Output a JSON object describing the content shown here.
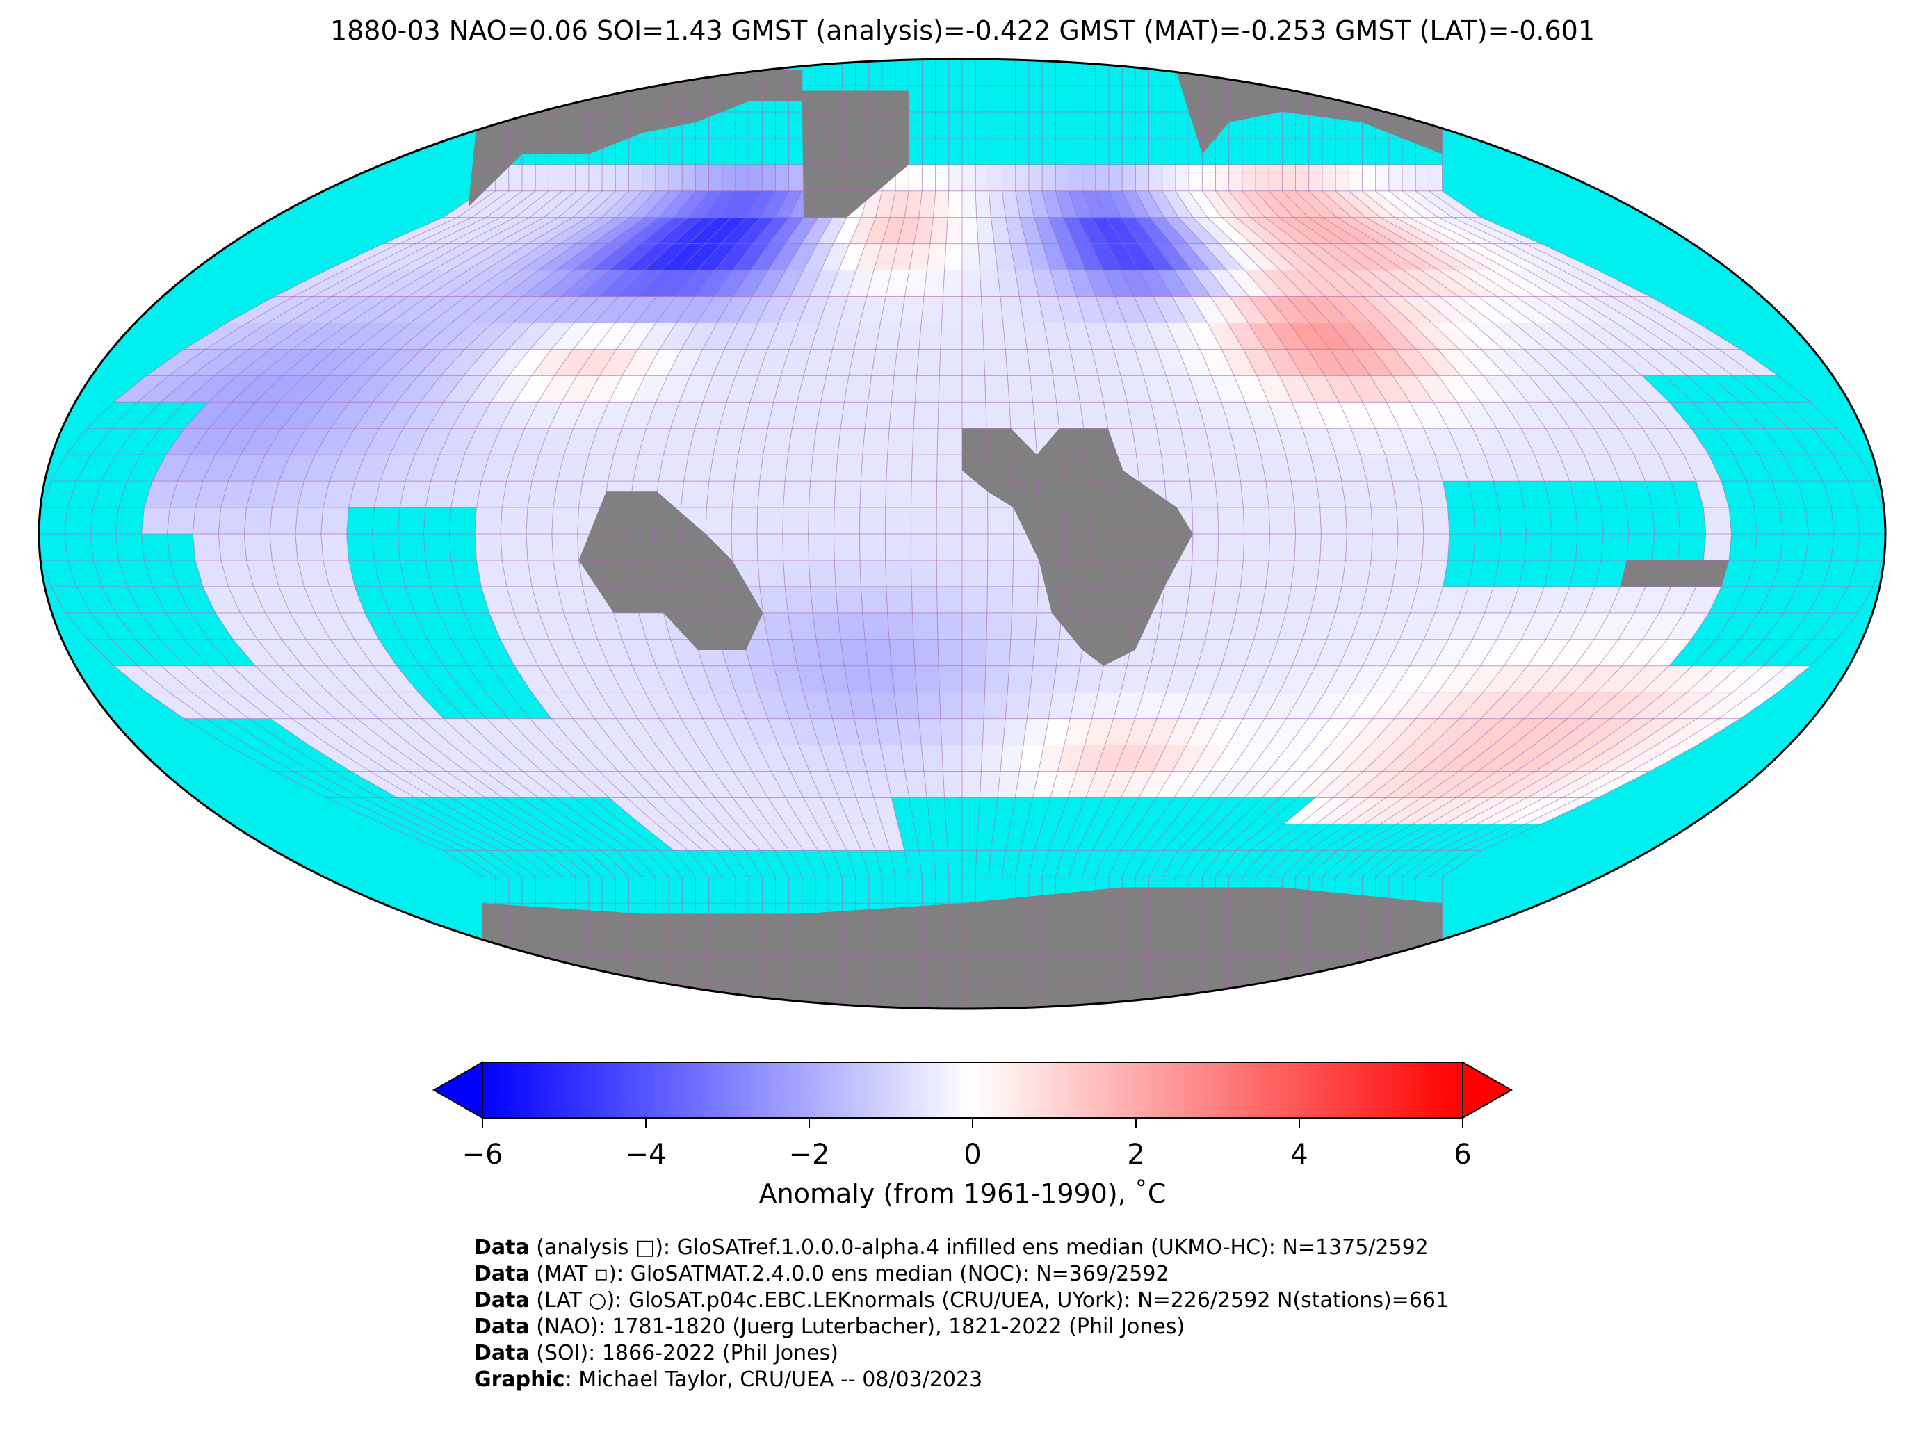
{
  "title": "1880-03 NAO=0.06 SOI=1.43 GMST (analysis)=-0.422 GMST (MAT)=-0.253 GMST (LAT)=-0.601",
  "colorbar": {
    "label": "Anomaly (from 1961-1990), ˚C",
    "ticks": [
      "−6",
      "−4",
      "−2",
      "0",
      "2",
      "4",
      "6"
    ],
    "range": [
      -6,
      6
    ],
    "colors": {
      "low": "#0000ff",
      "mid": "#ffffff",
      "high": "#ff0000"
    }
  },
  "map": {
    "projection": "Robinson",
    "ocean_missing_color": "#00f0f0",
    "land_missing_color": "#808080",
    "gridline_color": "#b060b0"
  },
  "credits": [
    {
      "bold": "Data",
      "text": " (analysis □): GloSATref.1.0.0.0-alpha.4 infilled ens median (UKMO-HC): N=1375/2592"
    },
    {
      "bold": "Data",
      "text": " (MAT ▫): GloSATMAT.2.4.0.0 ens median (NOC): N=369/2592"
    },
    {
      "bold": "Data",
      "text": " (LAT ○): GloSAT.p04c.EBC.LEKnormals (CRU/UEA, UYork): N=226/2592 N(stations)=661"
    },
    {
      "bold": "Data",
      "text": " (NAO): 1781-1820 (Juerg Luterbacher), 1821-2022 (Phil Jones)"
    },
    {
      "bold": "Data",
      "text": " (SOI): 1866-2022 (Phil Jones)"
    },
    {
      "bold": "Graphic",
      "text": ": Michael Taylor, CRU/UEA -- 08/03/2023"
    }
  ]
}
